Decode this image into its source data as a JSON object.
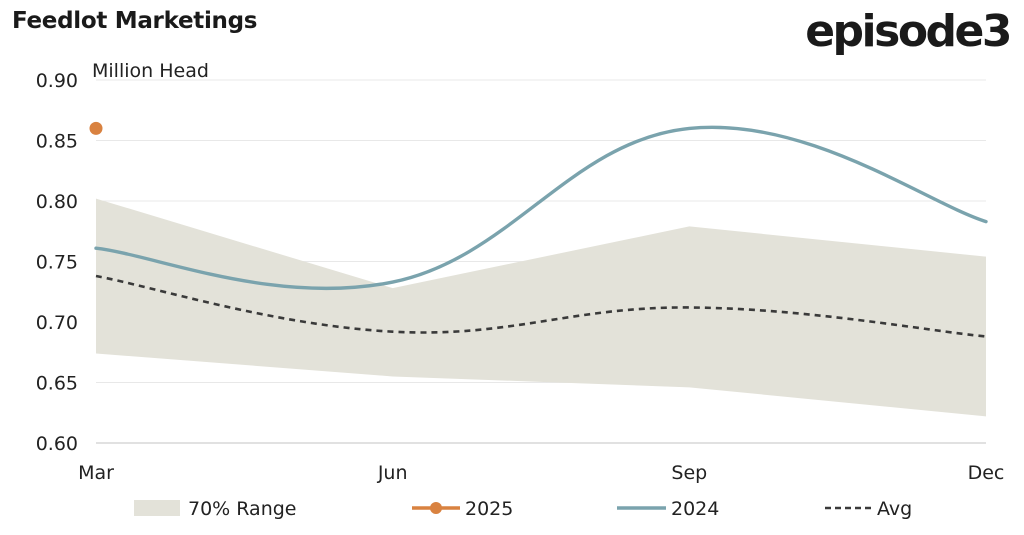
{
  "header": {
    "title": "Feedlot Marketings",
    "logo_text": "episode3"
  },
  "chart_data": {
    "type": "line",
    "title": "Feedlot Marketings",
    "ylabel": "Million Head",
    "xlabel": "",
    "ylim": [
      0.6,
      0.9
    ],
    "yticks": [
      "0.60",
      "0.65",
      "0.70",
      "0.75",
      "0.80",
      "0.85",
      "0.90"
    ],
    "ytick_values": [
      0.6,
      0.65,
      0.7,
      0.75,
      0.8,
      0.85,
      0.9
    ],
    "categories": [
      "Mar",
      "Jun",
      "Sep",
      "Dec"
    ],
    "grid": true,
    "legend_placement": "bottom",
    "range": {
      "name": "70% Range",
      "upper": [
        0.802,
        0.728,
        0.779,
        0.754
      ],
      "lower": [
        0.674,
        0.655,
        0.646,
        0.622
      ],
      "color": "#e3e2d9"
    },
    "series": [
      {
        "name": "2025",
        "values": [
          0.86,
          null,
          null,
          null
        ],
        "color": "#d98240",
        "style": "marker"
      },
      {
        "name": "2024",
        "values": [
          0.761,
          0.733,
          0.86,
          0.783
        ],
        "color": "#7aa3ad",
        "style": "solid"
      },
      {
        "name": "Avg",
        "values": [
          0.738,
          0.692,
          0.712,
          0.688
        ],
        "color": "#3a3a3a",
        "style": "dashed"
      }
    ]
  }
}
